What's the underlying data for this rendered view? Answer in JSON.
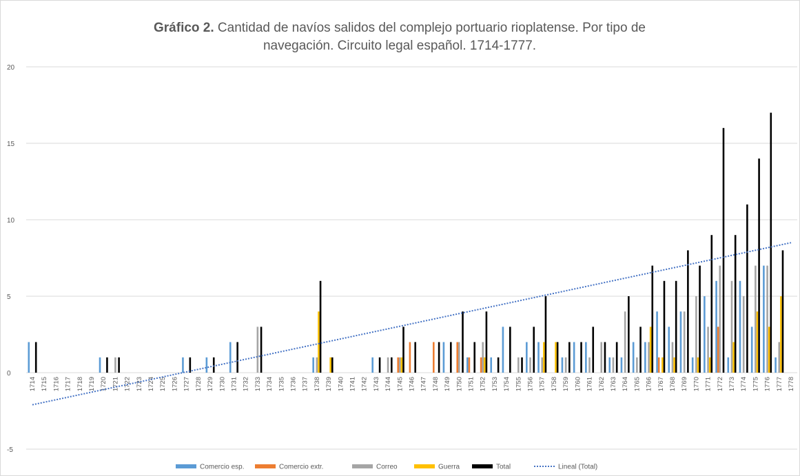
{
  "chart_data": {
    "type": "bar",
    "title": {
      "label": "Gráfico 2.",
      "lines": [
        " Cantidad de navíos salidos del complejo portuario rioplatense. Por tipo de",
        "navegación. Circuito legal español. 1714-1777."
      ]
    },
    "categories": [
      "1714",
      "1715",
      "1716",
      "1717",
      "1718",
      "1719",
      "1720",
      "1721",
      "1722",
      "1723",
      "1724",
      "1725",
      "1726",
      "1727",
      "1728",
      "1729",
      "1730",
      "1731",
      "1732",
      "1733",
      "1734",
      "1735",
      "1736",
      "1737",
      "1738",
      "1739",
      "1740",
      "1741",
      "1742",
      "1743",
      "1744",
      "1745",
      "1746",
      "1747",
      "1748",
      "1749",
      "1750",
      "1751",
      "1752",
      "1753",
      "1754",
      "1755",
      "1756",
      "1757",
      "1758",
      "1759",
      "1760",
      "1761",
      "1762",
      "1763",
      "1764",
      "1765",
      "1766",
      "1767",
      "1768",
      "1769",
      "1770",
      "1771",
      "1772",
      "1773",
      "1774",
      "1775",
      "1776",
      "1777",
      "1778"
    ],
    "series": [
      {
        "name": "Comercio esp.",
        "color": "#5b9bd5",
        "values": [
          2,
          0,
          0,
          0,
          0,
          0,
          1,
          0,
          0,
          0,
          0,
          0,
          0,
          1,
          0,
          1,
          0,
          2,
          0,
          0,
          0,
          0,
          0,
          0,
          1,
          0,
          0,
          0,
          0,
          1,
          0,
          0,
          0,
          0,
          0,
          2,
          0,
          1,
          0,
          1,
          3,
          0,
          2,
          2,
          0,
          1,
          2,
          2,
          0,
          1,
          1,
          2,
          2,
          4,
          3,
          4,
          1,
          5,
          6,
          1,
          6,
          3,
          7,
          1,
          0
        ]
      },
      {
        "name": "Comercio extr.",
        "color": "#ed7d31",
        "values": [
          0,
          0,
          0,
          0,
          0,
          0,
          0,
          0,
          0,
          0,
          0,
          0,
          0,
          0,
          0,
          0,
          0,
          0,
          0,
          0,
          0,
          0,
          0,
          0,
          0,
          0,
          0,
          0,
          0,
          0,
          0,
          1,
          2,
          0,
          2,
          0,
          2,
          1,
          1,
          0,
          0,
          0,
          0,
          0,
          0,
          0,
          0,
          0,
          0,
          0,
          0,
          0,
          0,
          1,
          0,
          0,
          0,
          0,
          3,
          0,
          0,
          0,
          0,
          0,
          0
        ]
      },
      {
        "name": "Correo",
        "color": "#a5a5a5",
        "values": [
          0,
          0,
          0,
          0,
          0,
          0,
          0,
          1,
          0,
          0,
          0,
          0,
          0,
          0,
          0,
          0,
          0,
          0,
          0,
          3,
          0,
          0,
          0,
          0,
          1,
          0,
          0,
          0,
          0,
          0,
          1,
          1,
          0,
          0,
          0,
          0,
          2,
          0,
          2,
          0,
          0,
          1,
          1,
          1,
          0,
          1,
          0,
          1,
          2,
          1,
          4,
          1,
          2,
          0,
          2,
          4,
          5,
          3,
          7,
          6,
          5,
          7,
          7,
          2,
          0
        ]
      },
      {
        "name": "Guerra",
        "color": "#ffc000",
        "values": [
          0,
          0,
          0,
          0,
          0,
          0,
          0,
          0,
          0,
          0,
          0,
          0,
          0,
          0,
          0,
          0,
          0,
          0,
          0,
          0,
          0,
          0,
          0,
          0,
          4,
          1,
          0,
          0,
          0,
          0,
          0,
          1,
          0,
          0,
          0,
          0,
          0,
          0,
          1,
          0,
          0,
          0,
          0,
          2,
          2,
          0,
          0,
          0,
          0,
          0,
          0,
          0,
          3,
          1,
          1,
          0,
          1,
          1,
          0,
          2,
          0,
          4,
          3,
          5,
          0
        ]
      },
      {
        "name": "Total",
        "color": "#000000",
        "values": [
          2,
          0,
          0,
          0,
          0,
          0,
          1,
          1,
          0,
          0,
          0,
          0,
          0,
          1,
          0,
          1,
          0,
          2,
          0,
          3,
          0,
          0,
          0,
          0,
          6,
          1,
          0,
          0,
          0,
          1,
          1,
          3,
          2,
          0,
          2,
          2,
          4,
          2,
          4,
          1,
          3,
          1,
          3,
          5,
          2,
          2,
          2,
          3,
          2,
          2,
          5,
          3,
          7,
          6,
          6,
          8,
          7,
          9,
          16,
          9,
          11,
          14,
          17,
          8,
          0
        ]
      }
    ],
    "trendline": {
      "name": "Lineal (Total)",
      "color": "#4472c4",
      "values": [
        -2.1,
        8.5
      ]
    },
    "ylim": [
      -5,
      20
    ],
    "yticks": [
      -5,
      0,
      5,
      10,
      15,
      20
    ],
    "grid": true,
    "legend": "bottom"
  }
}
